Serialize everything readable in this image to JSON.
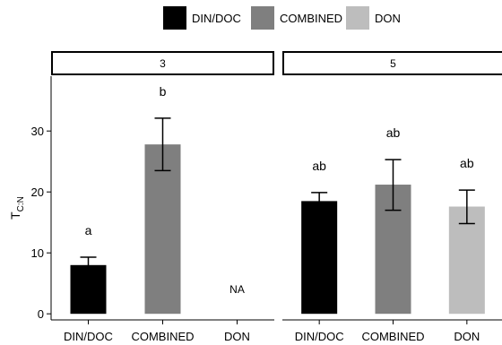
{
  "chart_data": {
    "type": "bar",
    "ylabel": "T",
    "ylabel_sub": "C:N",
    "ylim": [
      -1,
      39
    ],
    "y_ticks": [
      0,
      10,
      20,
      30
    ],
    "grid": false,
    "legend": {
      "position": "top",
      "entries": [
        {
          "name": "DIN/DOC",
          "color": "#000000"
        },
        {
          "name": "COMBINED",
          "color": "#7f7f7f"
        },
        {
          "name": "DON",
          "color": "#bdbdbd"
        }
      ]
    },
    "categories": [
      "DIN/DOC",
      "COMBINED",
      "DON"
    ],
    "panels": [
      {
        "strip": "3",
        "bars": [
          {
            "category": "DIN/DOC",
            "value": 8.0,
            "err_low": 6.6,
            "err_high": 9.3,
            "label": "a",
            "color": "#000000"
          },
          {
            "category": "COMBINED",
            "value": 27.8,
            "err_low": 23.5,
            "err_high": 32.1,
            "label": "b",
            "color": "#7f7f7f"
          },
          {
            "category": "DON",
            "value": null,
            "label": "NA",
            "color": "#bdbdbd"
          }
        ]
      },
      {
        "strip": "5",
        "bars": [
          {
            "category": "DIN/DOC",
            "value": 18.5,
            "err_low": 17.3,
            "err_high": 19.9,
            "label": "ab",
            "color": "#000000"
          },
          {
            "category": "COMBINED",
            "value": 21.2,
            "err_low": 17.0,
            "err_high": 25.3,
            "label": "ab",
            "color": "#7f7f7f"
          },
          {
            "category": "DON",
            "value": 17.6,
            "err_low": 14.8,
            "err_high": 20.3,
            "label": "ab",
            "color": "#bdbdbd"
          }
        ]
      }
    ]
  }
}
